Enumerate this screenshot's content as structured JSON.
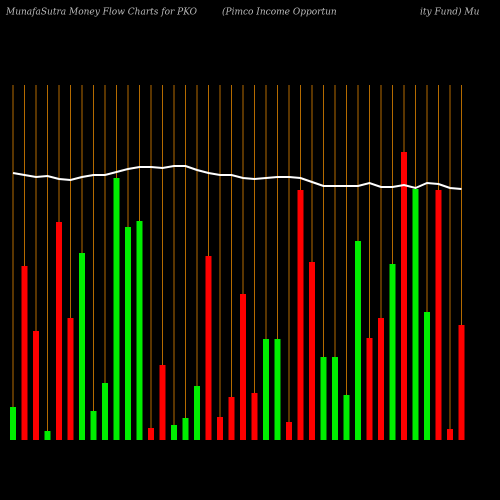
{
  "chart_data": {
    "type": "bar",
    "title": "MunafaSutra  Money Flow  Charts for PKO",
    "subtitle": "(Pimco  Income  Opportun",
    "subtitle_end": "ity Fund) Mu",
    "ylim": [
      0,
      360
    ],
    "guide_color": "#b36a00",
    "series": [
      {
        "type": "bar",
        "values": [
          33,
          174,
          109,
          9,
          218,
          122,
          187,
          29,
          57,
          262,
          213,
          219,
          12,
          75,
          15,
          22,
          54,
          184,
          23,
          43,
          146,
          47,
          101,
          101,
          18,
          250,
          178,
          83,
          83,
          45,
          199,
          102,
          122,
          176,
          288,
          251,
          128,
          250,
          11,
          115
        ],
        "colors": [
          "#00ee00",
          "#ff0000",
          "#ff0000",
          "#00ee00",
          "#ff0000",
          "#ff0000",
          "#00ee00",
          "#00ee00",
          "#00ee00",
          "#00ee00",
          "#00ee00",
          "#00ee00",
          "#ff0000",
          "#ff0000",
          "#00ee00",
          "#00ee00",
          "#00ee00",
          "#ff0000",
          "#ff0000",
          "#ff0000",
          "#ff0000",
          "#ff0000",
          "#00ee00",
          "#00ee00",
          "#ff0000",
          "#ff0000",
          "#ff0000",
          "#00ee00",
          "#00ee00",
          "#00ee00",
          "#00ee00",
          "#ff0000",
          "#ff0000",
          "#00ee00",
          "#ff0000",
          "#00ee00",
          "#00ee00",
          "#ff0000",
          "#ff0000",
          "#ff0000"
        ]
      },
      {
        "type": "line",
        "color": "#ffffff",
        "values": [
          267,
          265,
          263,
          264,
          261,
          260,
          263,
          265,
          265,
          268,
          271,
          273,
          273,
          272,
          274,
          274,
          270,
          267,
          265,
          265,
          262,
          261,
          262,
          263,
          263,
          262,
          258,
          254,
          254,
          254,
          254,
          257,
          253,
          253,
          255,
          252,
          257,
          256,
          252,
          251
        ]
      }
    ]
  }
}
